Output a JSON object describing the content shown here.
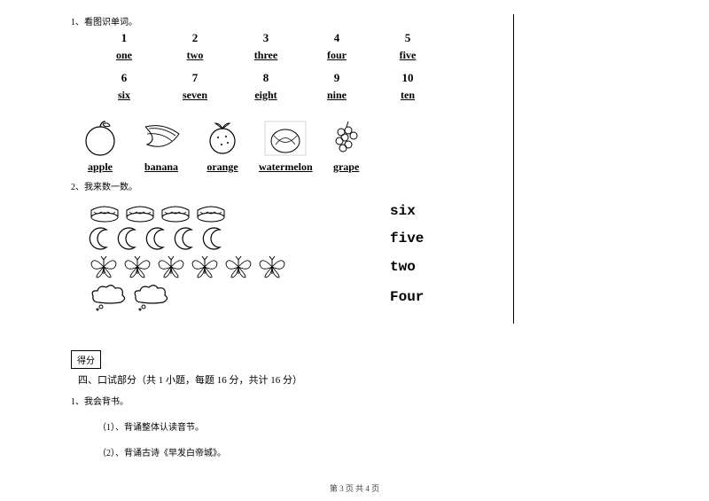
{
  "q1": {
    "label": "1、看图识单词。",
    "nums1": [
      "1",
      "2",
      "3",
      "4",
      "5"
    ],
    "words1": [
      "one",
      "two",
      "three",
      "four",
      "five"
    ],
    "nums2": [
      "6",
      "7",
      "8",
      "9",
      "10"
    ],
    "words2": [
      "six",
      "seven",
      "eight",
      "nine",
      "ten"
    ],
    "fruits": [
      "apple",
      "banana",
      "orange",
      "watermelon",
      "grape"
    ]
  },
  "q2": {
    "label": "2、我来数一数。",
    "rows": [
      {
        "count": 4,
        "word": "six"
      },
      {
        "count": 5,
        "word": "five"
      },
      {
        "count": 6,
        "word": "two"
      },
      {
        "count": 2,
        "word": "Four"
      }
    ]
  },
  "section4": {
    "scorebox": "得分",
    "title": "四、口试部分（共 1 小题，每题 16 分，共计 16 分）",
    "q1": "1、我会背书。",
    "sub1": "（1）、背诵整体认读音节。",
    "sub2": "（2）、背诵古诗《早发白帝城》。"
  },
  "footer": "第 3 页  共 4 页"
}
